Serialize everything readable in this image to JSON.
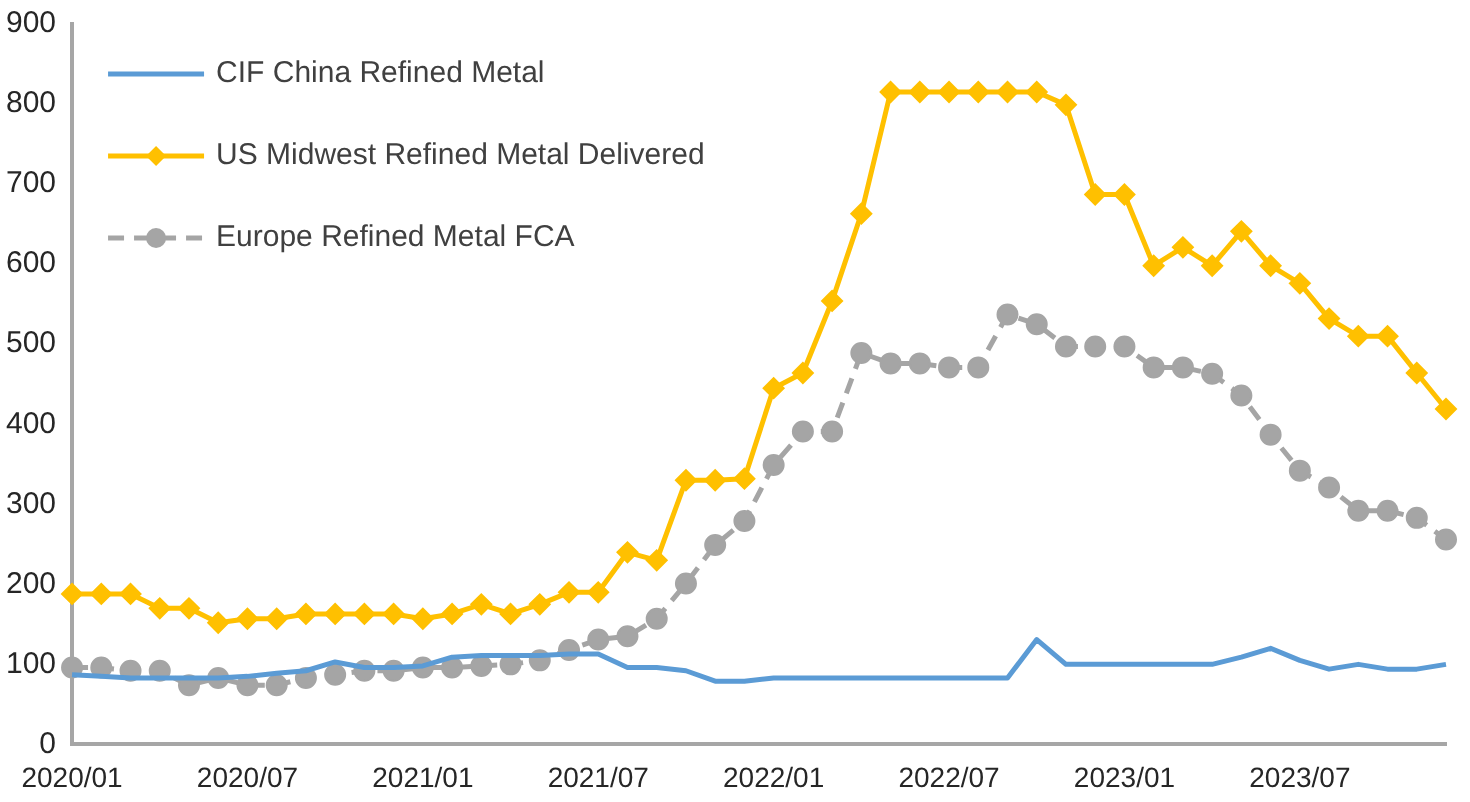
{
  "chart_data": {
    "type": "line",
    "categories": [
      "2020/01",
      null,
      null,
      null,
      null,
      null,
      "2020/07",
      null,
      null,
      null,
      null,
      null,
      "2021/01",
      null,
      null,
      null,
      null,
      null,
      "2021/07",
      null,
      null,
      null,
      null,
      null,
      "2022/01",
      null,
      null,
      null,
      null,
      null,
      "2022/07",
      null,
      null,
      null,
      null,
      null,
      "2023/01",
      null,
      null,
      null,
      null,
      null,
      "2023/07",
      null,
      null,
      null,
      null,
      null
    ],
    "series": [
      {
        "name": "CIF China Refined Metal",
        "color": "#5b9bd5",
        "marker": "none",
        "line_style": "solid",
        "values": [
          87,
          85,
          83,
          83,
          83,
          83,
          85,
          89,
          92,
          103,
          96,
          96,
          98,
          109,
          111,
          111,
          111,
          113,
          113,
          96,
          96,
          92,
          79,
          79,
          83,
          83,
          83,
          83,
          83,
          83,
          83,
          83,
          83,
          131,
          100,
          100,
          100,
          100,
          100,
          100,
          109,
          120,
          105,
          94,
          100,
          94,
          94,
          100
        ]
      },
      {
        "name": "US Midwest Refined Metal Delivered",
        "color": "#ffc000",
        "marker": "diamond",
        "line_style": "solid",
        "values": [
          188,
          188,
          188,
          170,
          170,
          152,
          157,
          157,
          163,
          163,
          163,
          163,
          157,
          163,
          175,
          163,
          175,
          190,
          190,
          240,
          230,
          330,
          330,
          332,
          445,
          464,
          554,
          663,
          815,
          815,
          815,
          815,
          815,
          815,
          799,
          687,
          687,
          598,
          621,
          598,
          641,
          598,
          576,
          532,
          510,
          510,
          464,
          419
        ]
      },
      {
        "name": "Europe Refined Metal FCA",
        "color": "#a5a5a5",
        "marker": "circle",
        "line_style": "dashed",
        "values": [
          96,
          96,
          92,
          92,
          74,
          83,
          74,
          74,
          83,
          87,
          92,
          92,
          96,
          96,
          98,
          100,
          105,
          118,
          131,
          135,
          157,
          201,
          249,
          279,
          349,
          391,
          391,
          489,
          476,
          476,
          471,
          471,
          537,
          525,
          497,
          497,
          497,
          471,
          471,
          463,
          436,
          387,
          342,
          321,
          292,
          292,
          283,
          256
        ]
      }
    ],
    "ylim": [
      0,
      900
    ],
    "yticks": [
      0,
      100,
      200,
      300,
      400,
      500,
      600,
      700,
      800,
      900
    ],
    "grid": false,
    "legend": "top left"
  }
}
